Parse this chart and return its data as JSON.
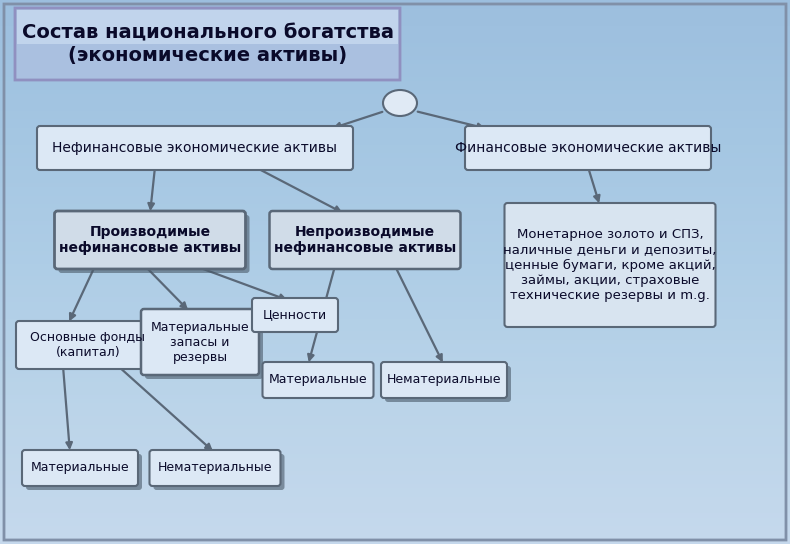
{
  "title": "Состав национального богатства\n(экономические активы)",
  "bg_color": "#c5d8ec",
  "bg_gradient_top": "#dce8f5",
  "bg_gradient_bot": "#a8c4de",
  "box_face": "#dce8f5",
  "box_face_dark": "#c8d8ea",
  "box_edge": "#5a6878",
  "box_edge_dark": "#2a3848",
  "title_bg_top": "#9ab8d8",
  "title_bg_bot": "#c8d8f0",
  "title_text_color": "#0a0a2a",
  "arrow_color": "#5a6878",
  "nodes": {
    "nefinans": "Нефинансовые экономические активы",
    "finansy": "Финансовые экономические активы",
    "proizvod": "Производимые\nнефинансовые активы",
    "neproizvod": "Непроизводимые\nнефинансовые активы",
    "monetar": "Монетарное золото и СПЗ,\nналичные деньги и депозиты,\nценные бумаги, кроме акций,\nзаймы, акции, страховые\nтехнические резервы и m.g.",
    "osnovnye": "Основные фонды\n(капитал)",
    "mat_zapasy": "Материальные\nзапасы и\nрезервы",
    "cennosti": "Ценности",
    "mat_np": "Материальные",
    "nemat_np": "Нематериальные",
    "mat_os": "Материальные",
    "nemat_os": "Нематериальные"
  },
  "font_sizes": {
    "title": 14,
    "level1": 10,
    "level2": 10,
    "level3": 9,
    "level4": 9,
    "monetar": 9.5
  }
}
